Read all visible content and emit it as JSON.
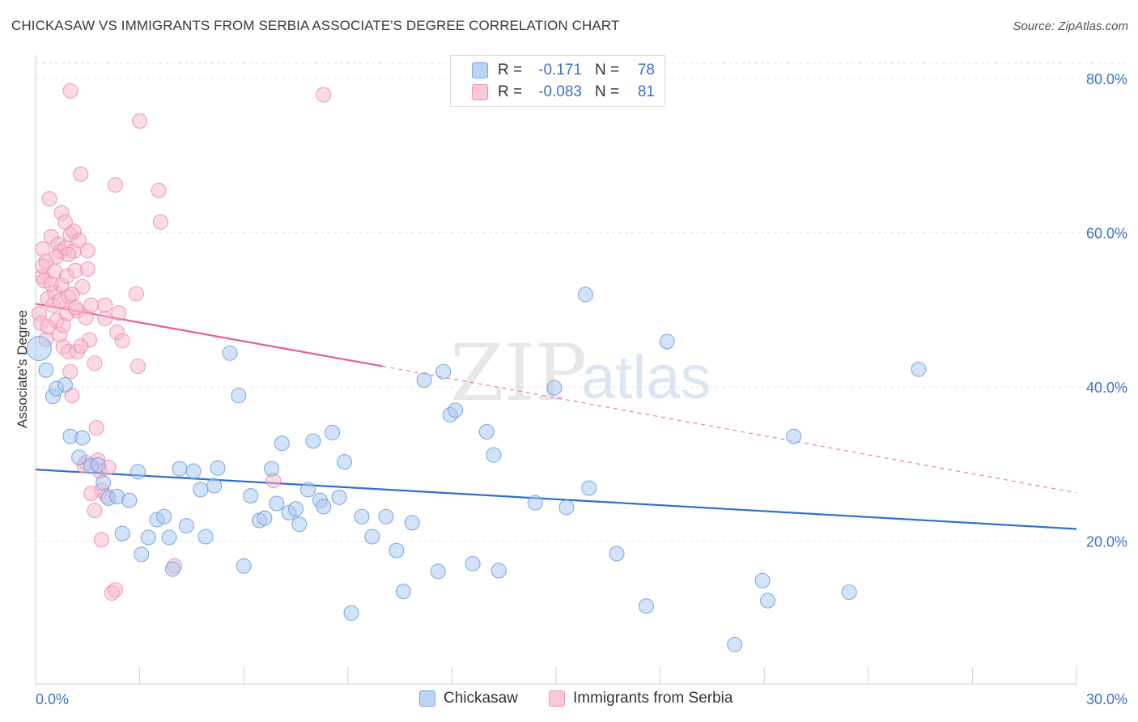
{
  "title": "CHICKASAW VS IMMIGRANTS FROM SERBIA ASSOCIATE'S DEGREE CORRELATION CHART",
  "source": "Source: ZipAtlas.com",
  "watermark": {
    "zip": "ZIP",
    "atlas": "atlas"
  },
  "legend_top": [
    {
      "r_label": "R =",
      "r_value": "-0.171",
      "n_label": "N =",
      "n_value": "78"
    },
    {
      "r_label": "R =",
      "r_value": "-0.083",
      "n_label": "N =",
      "n_value": "81"
    }
  ],
  "legend_bottom": [
    "Chickasaw",
    "Immigrants from Serbia"
  ],
  "colors": {
    "blue_fill": "#a8c8f0",
    "blue_stroke": "#6f9ee0",
    "blue_line": "#2f6fcb",
    "pink_fill": "#f6b8cb",
    "pink_stroke": "#ec8fae",
    "pink_line": "#e5608c",
    "axis_text": "#3d72c9",
    "grid": "#e3e3e3"
  },
  "chart_data": {
    "type": "scatter",
    "xlabel": "",
    "ylabel": "Associate's Degree",
    "xlim": [
      0,
      30
    ],
    "ylim": [
      1.5,
      82
    ],
    "x_tick_labels": [
      "0.0%",
      "30.0%"
    ],
    "y_ticks": [
      20,
      40,
      60,
      80
    ],
    "y_tick_labels": [
      "20.0%",
      "40.0%",
      "60.0%",
      "80.0%"
    ],
    "grid": "horizontal dashed",
    "legend": "top-center",
    "series": [
      {
        "name": "Chickasaw",
        "color": "blue",
        "trend": {
          "x": [
            0,
            30
          ],
          "y": [
            29.3,
            21.6
          ],
          "dashed_to": 30
        },
        "points": [
          [
            0.1,
            45.0
          ],
          [
            0.3,
            42.2
          ],
          [
            0.5,
            38.8
          ],
          [
            0.6,
            39.8
          ],
          [
            0.85,
            40.3
          ],
          [
            1.0,
            33.6
          ],
          [
            1.35,
            33.4
          ],
          [
            1.25,
            30.9
          ],
          [
            1.6,
            29.8
          ],
          [
            1.8,
            29.9
          ],
          [
            1.95,
            27.6
          ],
          [
            2.1,
            25.6
          ],
          [
            2.35,
            25.8
          ],
          [
            2.5,
            21.0
          ],
          [
            2.7,
            25.3
          ],
          [
            2.95,
            29.0
          ],
          [
            3.05,
            18.3
          ],
          [
            3.25,
            20.5
          ],
          [
            3.5,
            22.8
          ],
          [
            3.7,
            23.2
          ],
          [
            3.85,
            20.5
          ],
          [
            3.95,
            16.4
          ],
          [
            4.15,
            29.4
          ],
          [
            4.35,
            22.0
          ],
          [
            4.55,
            29.1
          ],
          [
            4.75,
            26.7
          ],
          [
            4.9,
            20.6
          ],
          [
            5.15,
            27.2
          ],
          [
            5.25,
            29.5
          ],
          [
            5.6,
            44.4
          ],
          [
            5.85,
            38.9
          ],
          [
            6.0,
            16.8
          ],
          [
            6.2,
            25.9
          ],
          [
            6.45,
            22.7
          ],
          [
            6.6,
            23.0
          ],
          [
            6.8,
            29.4
          ],
          [
            6.95,
            24.9
          ],
          [
            7.1,
            32.7
          ],
          [
            7.3,
            23.7
          ],
          [
            7.5,
            24.2
          ],
          [
            7.6,
            22.2
          ],
          [
            7.85,
            26.7
          ],
          [
            8.0,
            33.0
          ],
          [
            8.2,
            25.3
          ],
          [
            8.3,
            24.5
          ],
          [
            8.55,
            34.1
          ],
          [
            8.75,
            25.7
          ],
          [
            8.9,
            30.3
          ],
          [
            9.1,
            10.7
          ],
          [
            9.4,
            23.2
          ],
          [
            9.7,
            20.6
          ],
          [
            10.1,
            23.2
          ],
          [
            10.4,
            18.8
          ],
          [
            10.6,
            13.5
          ],
          [
            10.85,
            22.4
          ],
          [
            11.2,
            40.9
          ],
          [
            11.6,
            16.1
          ],
          [
            11.75,
            42.0
          ],
          [
            11.95,
            36.4
          ],
          [
            12.1,
            37.0
          ],
          [
            12.6,
            17.1
          ],
          [
            13.0,
            34.2
          ],
          [
            13.2,
            31.2
          ],
          [
            13.35,
            16.2
          ],
          [
            14.4,
            25.0
          ],
          [
            14.95,
            39.9
          ],
          [
            15.3,
            24.4
          ],
          [
            15.85,
            52.0
          ],
          [
            15.95,
            26.9
          ],
          [
            16.75,
            18.4
          ],
          [
            17.6,
            11.6
          ],
          [
            18.2,
            45.9
          ],
          [
            20.95,
            14.9
          ],
          [
            20.15,
            6.6
          ],
          [
            21.1,
            12.3
          ],
          [
            21.85,
            33.6
          ],
          [
            23.45,
            13.4
          ],
          [
            25.45,
            42.3
          ]
        ]
      },
      {
        "name": "Immigrants from Serbia",
        "color": "pink",
        "trend": {
          "x": [
            0,
            10
          ],
          "y": [
            50.8,
            42.7
          ],
          "dashed_to": 30,
          "dashed_end_y": 26.3
        },
        "points": [
          [
            0.1,
            49.5
          ],
          [
            0.15,
            48.3
          ],
          [
            0.2,
            54.3
          ],
          [
            0.2,
            57.9
          ],
          [
            0.25,
            53.8
          ],
          [
            0.3,
            56.3
          ],
          [
            0.35,
            51.5
          ],
          [
            0.3,
            46.2
          ],
          [
            0.4,
            64.4
          ],
          [
            0.45,
            59.5
          ],
          [
            0.5,
            50.6
          ],
          [
            0.55,
            52.3
          ],
          [
            0.6,
            48.6
          ],
          [
            0.55,
            55.0
          ],
          [
            0.65,
            58.5
          ],
          [
            0.7,
            57.6
          ],
          [
            0.7,
            51.2
          ],
          [
            0.75,
            53.2
          ],
          [
            0.7,
            46.8
          ],
          [
            0.75,
            62.6
          ],
          [
            0.8,
            45.2
          ],
          [
            0.85,
            61.4
          ],
          [
            0.85,
            58.0
          ],
          [
            0.9,
            54.4
          ],
          [
            0.9,
            49.5
          ],
          [
            0.95,
            51.7
          ],
          [
            0.95,
            44.6
          ],
          [
            1.0,
            59.8
          ],
          [
            1.0,
            78.4
          ],
          [
            1.05,
            52.0
          ],
          [
            1.05,
            38.9
          ],
          [
            1.1,
            60.2
          ],
          [
            1.1,
            57.6
          ],
          [
            1.15,
            55.1
          ],
          [
            1.2,
            49.9
          ],
          [
            1.2,
            44.6
          ],
          [
            1.25,
            59.0
          ],
          [
            1.3,
            67.6
          ],
          [
            1.35,
            53.0
          ],
          [
            1.4,
            29.8
          ],
          [
            1.45,
            30.2
          ],
          [
            1.5,
            57.7
          ],
          [
            1.5,
            55.3
          ],
          [
            1.55,
            46.1
          ],
          [
            1.6,
            50.6
          ],
          [
            1.7,
            43.1
          ],
          [
            1.75,
            34.7
          ],
          [
            1.8,
            30.5
          ],
          [
            1.85,
            29.1
          ],
          [
            1.9,
            26.6
          ],
          [
            1.9,
            20.2
          ],
          [
            2.0,
            50.6
          ],
          [
            2.0,
            48.9
          ],
          [
            2.05,
            25.9
          ],
          [
            2.1,
            29.6
          ],
          [
            2.2,
            13.3
          ],
          [
            2.3,
            13.7
          ],
          [
            2.3,
            66.2
          ],
          [
            2.35,
            47.1
          ],
          [
            2.4,
            49.6
          ],
          [
            2.9,
            52.1
          ],
          [
            2.95,
            42.7
          ],
          [
            3.0,
            74.5
          ],
          [
            3.55,
            65.5
          ],
          [
            3.6,
            61.4
          ],
          [
            4.0,
            16.8
          ],
          [
            6.85,
            27.9
          ],
          [
            8.3,
            77.9
          ],
          [
            0.2,
            55.7
          ],
          [
            0.35,
            47.8
          ],
          [
            0.45,
            53.4
          ],
          [
            0.6,
            56.9
          ],
          [
            0.8,
            48.0
          ],
          [
            0.95,
            57.2
          ],
          [
            1.15,
            50.3
          ],
          [
            1.3,
            45.3
          ],
          [
            1.45,
            49.0
          ],
          [
            1.6,
            26.2
          ],
          [
            1.7,
            24.0
          ],
          [
            2.5,
            46.0
          ],
          [
            1.0,
            42.0
          ]
        ]
      }
    ]
  }
}
